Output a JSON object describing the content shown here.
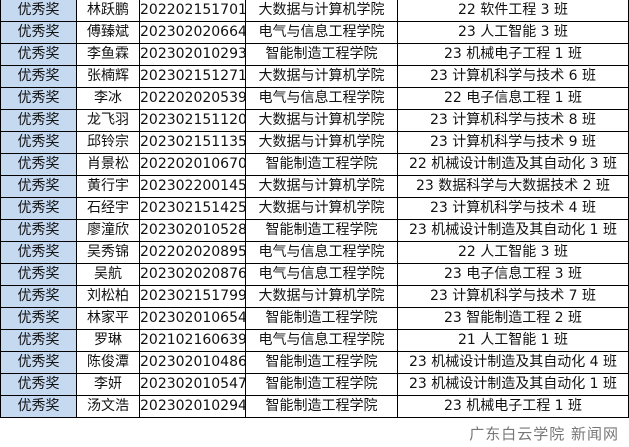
{
  "rows": [
    {
      "award": "优秀奖",
      "name": "林跃鹏",
      "id": "202202151701",
      "college": "大数据与计算机学院",
      "class": "22 软件工程 3 班"
    },
    {
      "award": "优秀奖",
      "name": "傅臻斌",
      "id": "202302020664",
      "college": "电气与信息工程学院",
      "class": "23 人工智能 3 班"
    },
    {
      "award": "优秀奖",
      "name": "李鱼霖",
      "id": "202302010293",
      "college": "智能制造工程学院",
      "class": "23 机械电子工程 1 班"
    },
    {
      "award": "优秀奖",
      "name": "张楠辉",
      "id": "202302151271",
      "college": "大数据与计算机学院",
      "class": "23 计算机科学与技术 6 班"
    },
    {
      "award": "优秀奖",
      "name": "李冰",
      "id": "202202020539",
      "college": "电气与信息工程学院",
      "class": "22 电子信息工程 1 班"
    },
    {
      "award": "优秀奖",
      "name": "龙飞羽",
      "id": "202302151120",
      "college": "大数据与计算机学院",
      "class": "23 计算机科学与技术 8 班"
    },
    {
      "award": "优秀奖",
      "name": "邱铃宗",
      "id": "202302151135",
      "college": "大数据与计算机学院",
      "class": "23 计算机科学与技术 9 班"
    },
    {
      "award": "优秀奖",
      "name": "肖景松",
      "id": "202202010670",
      "college": "智能制造工程学院",
      "class": "22 机械设计制造及其自动化 3 班"
    },
    {
      "award": "优秀奖",
      "name": "黄行宇",
      "id": "202302200145",
      "college": "大数据与计算机学院",
      "class": "23 数据科学与大数据技术 2 班"
    },
    {
      "award": "优秀奖",
      "name": "石经宇",
      "id": "202302151425",
      "college": "大数据与计算机学院",
      "class": "23 计算机科学与技术 4 班"
    },
    {
      "award": "优秀奖",
      "name": "廖潼欣",
      "id": "202302010528",
      "college": "智能制造工程学院",
      "class": "23 机械设计制造及其自动化 1 班"
    },
    {
      "award": "优秀奖",
      "name": "吴秀锦",
      "id": "202202020895",
      "college": "电气与信息工程学院",
      "class": "22 人工智能 3 班"
    },
    {
      "award": "优秀奖",
      "name": "吴航",
      "id": "202302020876",
      "college": "电气与信息工程学院",
      "class": "23 电子信息工程 3 班"
    },
    {
      "award": "优秀奖",
      "name": "刘松柏",
      "id": "202302151799",
      "college": "大数据与计算机学院",
      "class": "23 计算机科学与技术 7 班"
    },
    {
      "award": "优秀奖",
      "name": "林家平",
      "id": "202302010654",
      "college": "智能制造工程学院",
      "class": "23 智能制造工程 2 班"
    },
    {
      "award": "优秀奖",
      "name": "罗琳",
      "id": "202102160639",
      "college": "电气与信息工程学院",
      "class": "21 人工智能 1 班"
    },
    {
      "award": "优秀奖",
      "name": "陈俊潭",
      "id": "202302010486",
      "college": "智能制造工程学院",
      "class": "23 机械设计制造及其自动化 4 班"
    },
    {
      "award": "优秀奖",
      "name": "李妍",
      "id": "202302010547",
      "college": "智能制造工程学院",
      "class": "23 机械设计制造及其自动化 1 班"
    },
    {
      "award": "优秀奖",
      "name": "汤文浩",
      "id": "202302010294",
      "college": "智能制造工程学院",
      "class": "23 机械电子工程 1 班"
    }
  ],
  "watermark": "广东白云学院 新闻网",
  "colors": {
    "award_cell_bg": "#c5d9f1",
    "border": "#000000"
  }
}
